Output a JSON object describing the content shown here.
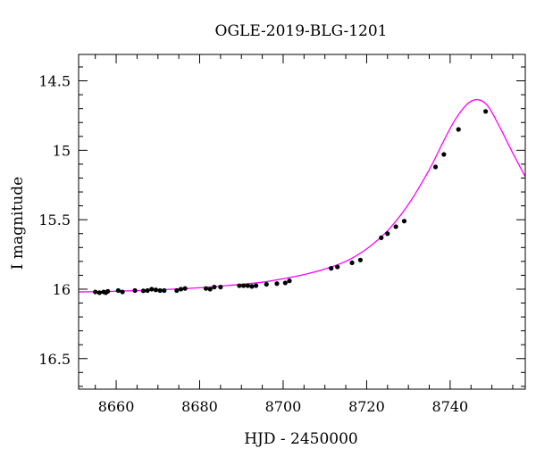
{
  "chart_data": {
    "type": "line",
    "title": "OGLE-2019-BLG-1201",
    "xlabel": "HJD - 2450000",
    "ylabel": "I magnitude",
    "xlim": [
      8651,
      8758
    ],
    "ylim": [
      16.72,
      14.31
    ],
    "y_inverted": true,
    "grid": false,
    "x_ticks": [
      8660,
      8680,
      8700,
      8720,
      8740
    ],
    "x_tick_labels": [
      "8660",
      "8680",
      "8700",
      "8720",
      "8740"
    ],
    "y_ticks": [
      14.5,
      15,
      15.5,
      16,
      16.5
    ],
    "y_tick_labels": [
      "14.5",
      "15",
      "15.5",
      "16",
      "16.5"
    ],
    "model_color": "#ff00ff",
    "point_color": "#000000",
    "series": [
      {
        "type": "line",
        "x": [
          8651,
          8660,
          8670,
          8680,
          8690,
          8695,
          8700,
          8705,
          8710,
          8715,
          8720,
          8725,
          8730,
          8735,
          8738,
          8741,
          8744,
          8746.5,
          8749,
          8752,
          8755,
          8758
        ],
        "y": [
          16.02,
          16.015,
          16.005,
          15.99,
          15.965,
          15.95,
          15.925,
          15.895,
          15.855,
          15.8,
          15.71,
          15.58,
          15.39,
          15.14,
          14.96,
          14.79,
          14.67,
          14.635,
          14.68,
          14.84,
          15.02,
          15.19
        ]
      },
      {
        "type": "scatter",
        "x": [
          8655.0,
          8656.0,
          8657.0,
          8657.5,
          8658.0,
          8660.5,
          8661.5,
          8664.5,
          8666.5,
          8667.5,
          8668.5,
          8669.5,
          8670.5,
          8671.5,
          8674.5,
          8675.5,
          8676.5,
          8681.5,
          8682.5,
          8683.5,
          8685.0,
          8689.5,
          8690.5,
          8691.5,
          8692.5,
          8693.5,
          8696.0,
          8698.5,
          8700.5,
          8701.5,
          8711.5,
          8713.0,
          8716.5,
          8718.5,
          8723.5,
          8725.0,
          8727.0,
          8729.0,
          8736.5,
          8738.5,
          8742.0,
          8748.5
        ],
        "y": [
          16.02,
          16.025,
          16.02,
          16.025,
          16.015,
          16.01,
          16.02,
          16.01,
          16.012,
          16.01,
          16.0,
          16.005,
          16.01,
          16.01,
          16.01,
          16.0,
          15.995,
          15.995,
          16.0,
          15.985,
          15.985,
          15.975,
          15.975,
          15.975,
          15.98,
          15.975,
          15.965,
          15.96,
          15.955,
          15.94,
          15.85,
          15.84,
          15.81,
          15.79,
          15.63,
          15.6,
          15.55,
          15.51,
          15.12,
          15.03,
          14.85,
          14.72
        ]
      }
    ]
  }
}
